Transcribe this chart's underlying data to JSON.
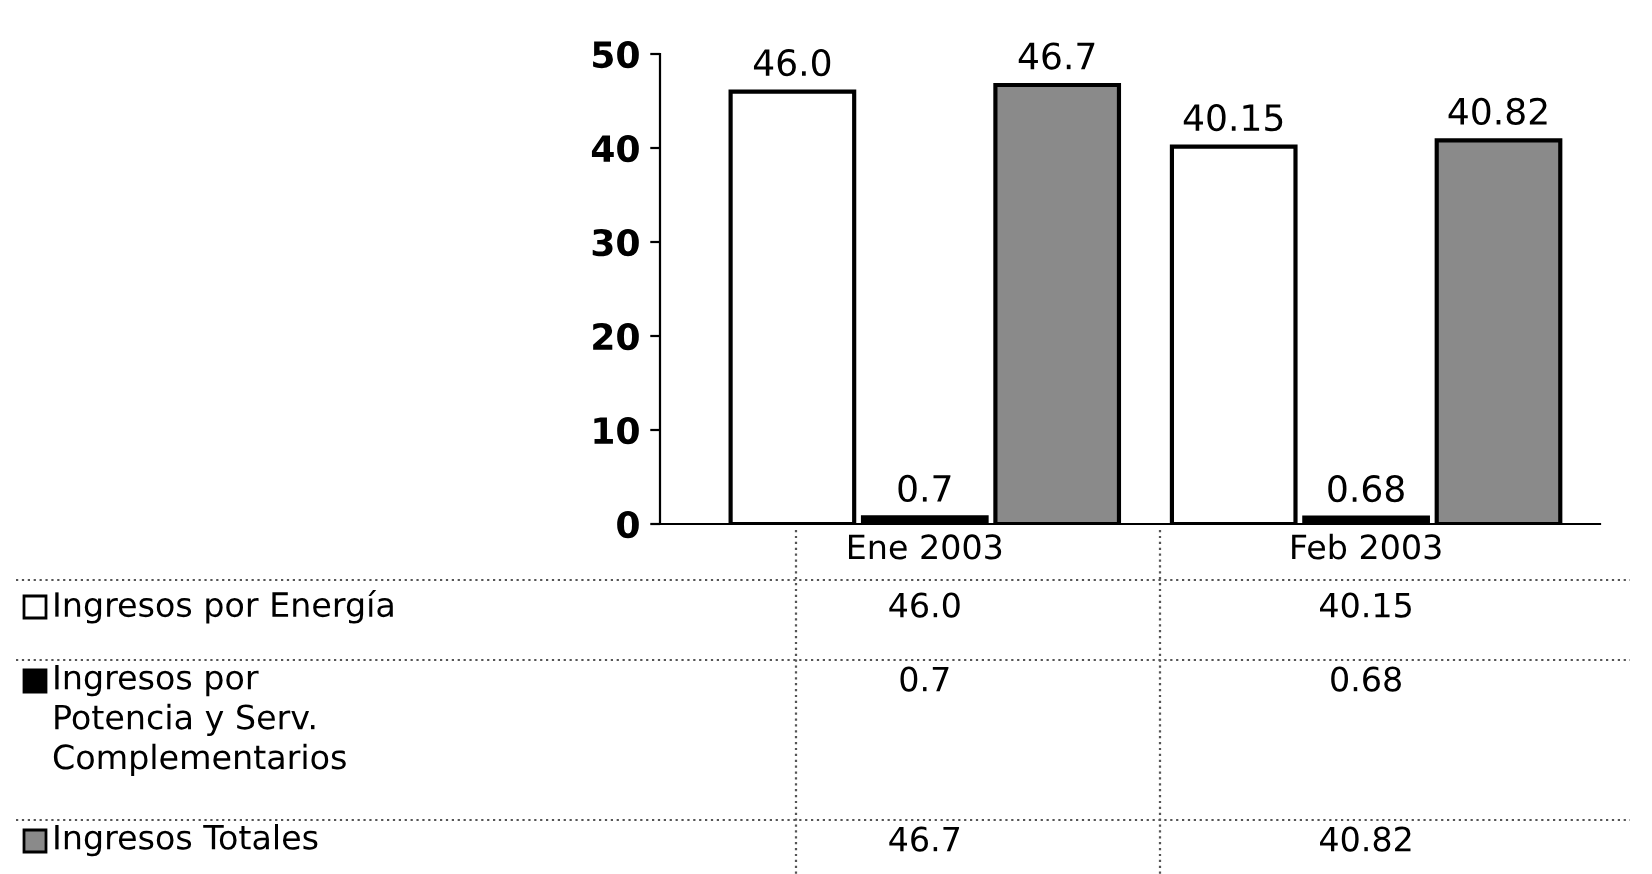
{
  "chart_data": {
    "type": "bar",
    "categories": [
      "Ene 2003",
      "Feb 2003"
    ],
    "series": [
      {
        "name": "Ingresos por Energía",
        "color": "#ffffff",
        "values": [
          46.0,
          40.15
        ],
        "value_labels": [
          "46.0",
          "40.15"
        ]
      },
      {
        "name": "Ingresos por\nPotencia y Serv.\nComplementarios",
        "color": "#000000",
        "values": [
          0.7,
          0.68
        ],
        "value_labels": [
          "0.7",
          "0.68"
        ]
      },
      {
        "name": "Ingresos Totales",
        "color": "#8a8a8a",
        "values": [
          46.7,
          40.82
        ],
        "value_labels": [
          "46.7",
          "40.82"
        ]
      }
    ],
    "ylim": [
      0,
      50
    ],
    "yticks": [
      0,
      10,
      20,
      30,
      40,
      50
    ],
    "grid": false,
    "legend": "bottom"
  }
}
